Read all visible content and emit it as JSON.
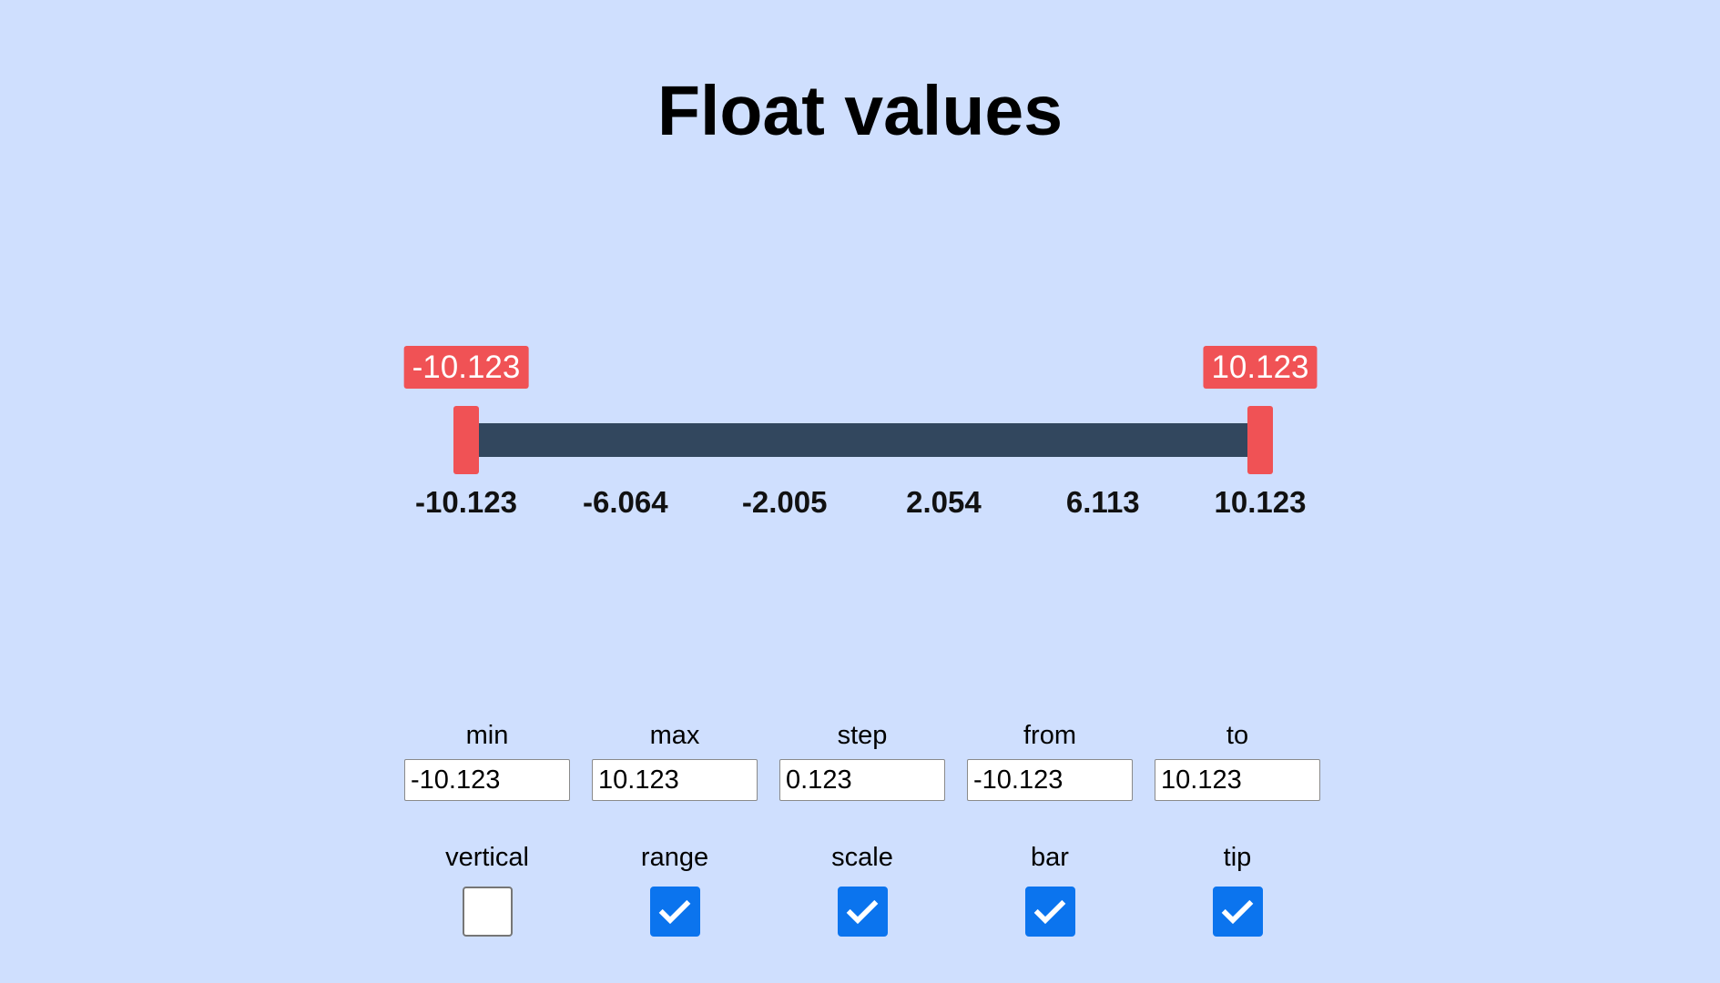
{
  "page": {
    "title": "Float values"
  },
  "slider": {
    "min": -10.123,
    "max": 10.123,
    "from": -10.123,
    "to": 10.123,
    "tip_from": "-10.123",
    "tip_to": "10.123",
    "scale_labels": [
      "-10.123",
      "-6.064",
      "-2.005",
      "2.054",
      "6.113",
      "10.123"
    ]
  },
  "inputs": [
    {
      "label": "min",
      "value": "-10.123"
    },
    {
      "label": "max",
      "value": "10.123"
    },
    {
      "label": "step",
      "value": "0.123"
    },
    {
      "label": "from",
      "value": "-10.123"
    },
    {
      "label": "to",
      "value": "10.123"
    }
  ],
  "checkboxes": [
    {
      "label": "vertical",
      "checked": false
    },
    {
      "label": "range",
      "checked": true
    },
    {
      "label": "scale",
      "checked": true
    },
    {
      "label": "bar",
      "checked": true
    },
    {
      "label": "tip",
      "checked": true
    }
  ],
  "colors": {
    "background": "#cfdffe",
    "bar": "#32475e",
    "handle": "#f05255",
    "checkbox_checked": "#0b74ee"
  },
  "icons": {
    "check": "check-icon"
  }
}
